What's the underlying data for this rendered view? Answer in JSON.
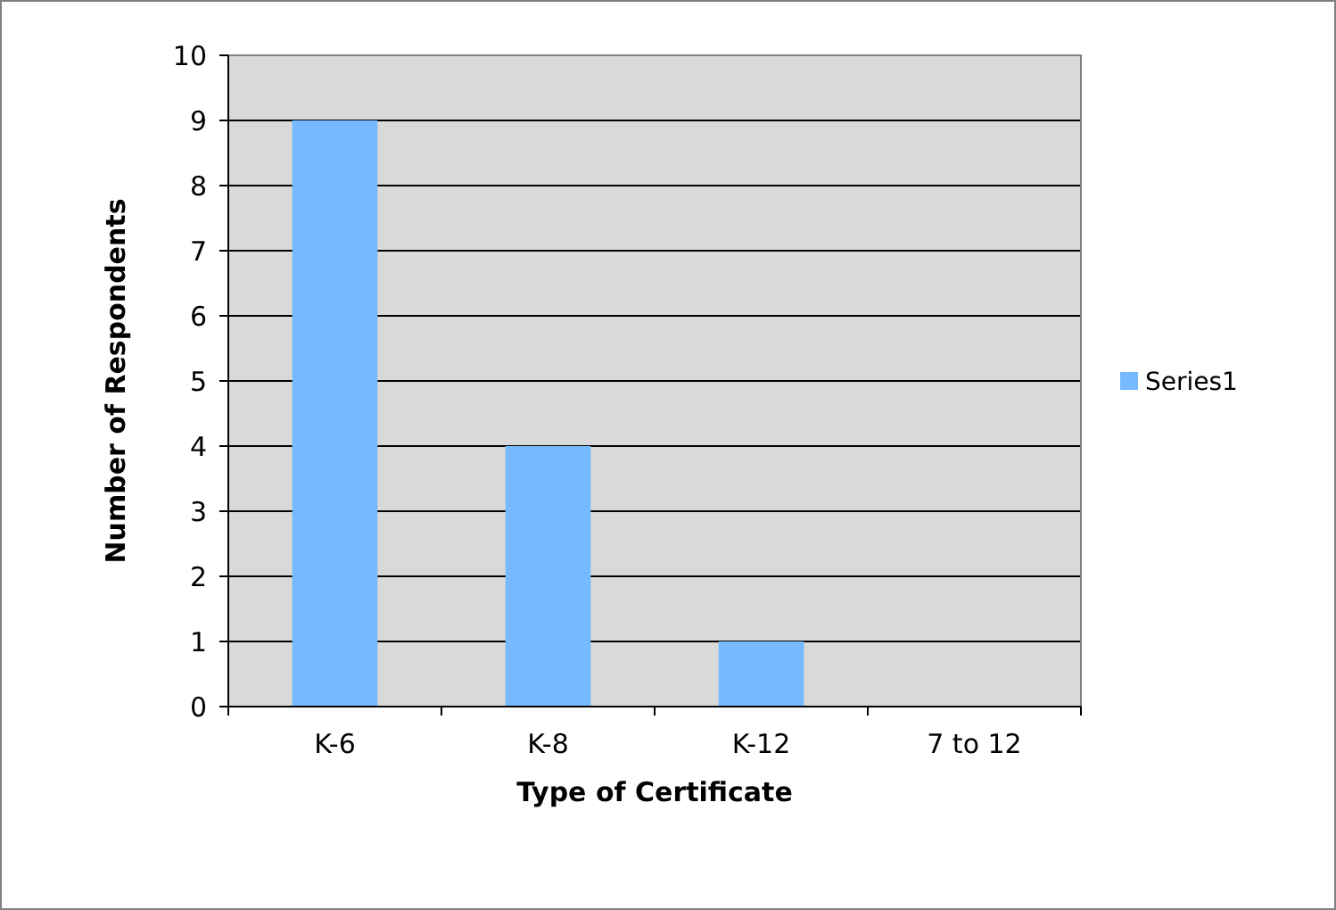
{
  "chart_data": {
    "type": "bar",
    "xlabel": "Type of Certificate",
    "ylabel": "Number of Respondents",
    "categories": [
      "K-6",
      "K-8",
      "K-12",
      "7 to 12"
    ],
    "series": [
      {
        "name": "Series1",
        "color": "#75b9ff",
        "values": [
          9,
          4,
          1,
          0
        ]
      }
    ],
    "ylim": [
      0,
      10
    ],
    "yticks": [
      0,
      1,
      2,
      3,
      4,
      5,
      6,
      7,
      8,
      9,
      10
    ],
    "grid": "y",
    "legend": "right"
  }
}
